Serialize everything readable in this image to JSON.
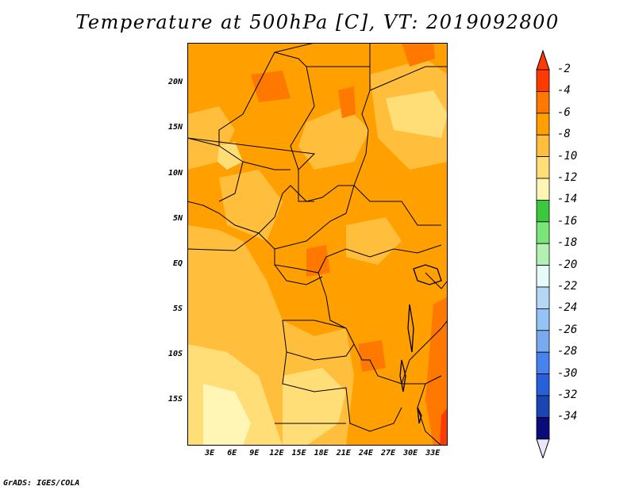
{
  "title": "Temperature at 500hPa [C], VT: 2019092800",
  "footer": "GrADS: IGES/COLA",
  "map": {
    "lon_range": [
      0,
      35
    ],
    "lat_range": [
      -20,
      24.5
    ],
    "lon_ticks": [
      "3E",
      "6E",
      "9E",
      "12E",
      "15E",
      "18E",
      "21E",
      "24E",
      "27E",
      "30E",
      "33E"
    ],
    "lon_values": [
      3,
      6,
      9,
      12,
      15,
      18,
      21,
      24,
      27,
      30,
      33
    ],
    "lat_ticks": [
      "20N",
      "15N",
      "10N",
      "5N",
      "EQ",
      "5S",
      "10S",
      "15S"
    ],
    "lat_values": [
      20,
      15,
      10,
      5,
      0,
      -5,
      -10,
      -15
    ]
  },
  "colorbar": {
    "labels": [
      "-2",
      "-4",
      "-6",
      "-8",
      "-10",
      "-12",
      "-14",
      "-16",
      "-18",
      "-20",
      "-22",
      "-24",
      "-26",
      "-28",
      "-30",
      "-32",
      "-34"
    ],
    "colors": [
      "#ff3a00",
      "#ff7800",
      "#ffa000",
      "#ffbe3c",
      "#ffde78",
      "#fff5b4",
      "#3cc83c",
      "#78e678",
      "#b4f0b4",
      "#e6fafa",
      "#b4d7f5",
      "#96c3f5",
      "#78aaf0",
      "#4682f0",
      "#2860dc",
      "#1a46b4",
      "#0a0a78"
    ],
    "over_color": "#ff3a00",
    "under_color": "#e8e8fa"
  }
}
